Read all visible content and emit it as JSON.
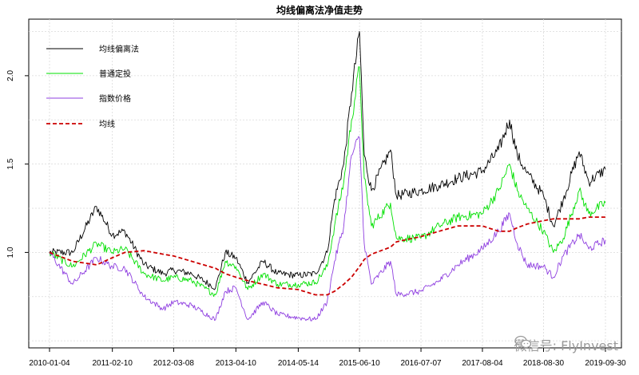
{
  "chart_data": {
    "type": "line",
    "title": "均线偏离法净值走势",
    "xlabel": "",
    "ylabel": "",
    "ylim": [
      0.46,
      2.32
    ],
    "yticks": [
      1.0,
      1.5,
      2.0
    ],
    "ytick_labels": [
      "1.0",
      "1.5",
      "2.0"
    ],
    "x_tick_labels": [
      "2010-01-04",
      "2011-02-10",
      "2012-03-08",
      "2013-04-10",
      "2014-05-14",
      "2015-06-10",
      "2016-07-07",
      "2017-08-04",
      "2018-08-30",
      "2019-09-30"
    ],
    "x": [
      "2010-01-04",
      "2010-06-01",
      "2010-11-01",
      "2011-02-10",
      "2011-05-01",
      "2011-09-01",
      "2012-01-01",
      "2012-03-08",
      "2012-07-01",
      "2012-12-01",
      "2013-02-01",
      "2013-04-10",
      "2013-06-25",
      "2013-10-01",
      "2014-01-01",
      "2014-05-14",
      "2014-09-01",
      "2014-11-15",
      "2015-01-01",
      "2015-03-01",
      "2015-04-20",
      "2015-06-10",
      "2015-07-10",
      "2015-08-25",
      "2015-12-25",
      "2016-02-01",
      "2016-07-07",
      "2016-11-01",
      "2017-03-01",
      "2017-08-04",
      "2017-11-15",
      "2018-01-25",
      "2018-03-15",
      "2018-05-15",
      "2018-08-30",
      "2018-11-01",
      "2019-01-03",
      "2019-04-15",
      "2019-06-15",
      "2019-09-30"
    ],
    "grid": true,
    "legend_position": "top-left",
    "series": [
      {
        "name": "均线偏离法",
        "color": "#000000",
        "style": "solid",
        "values": [
          1.0,
          1.0,
          1.26,
          1.1,
          1.12,
          0.93,
          0.88,
          0.9,
          0.88,
          0.8,
          1.0,
          0.97,
          0.83,
          0.95,
          0.88,
          0.87,
          0.88,
          1.0,
          1.3,
          1.5,
          1.9,
          2.25,
          1.55,
          1.35,
          1.58,
          1.32,
          1.35,
          1.38,
          1.42,
          1.46,
          1.58,
          1.75,
          1.55,
          1.45,
          1.32,
          1.15,
          1.3,
          1.57,
          1.4,
          1.47
        ]
      },
      {
        "name": "普通定投",
        "color": "#00e000",
        "style": "solid",
        "values": [
          1.0,
          0.92,
          1.05,
          1.0,
          1.02,
          0.88,
          0.84,
          0.86,
          0.84,
          0.76,
          0.95,
          0.92,
          0.79,
          0.88,
          0.82,
          0.82,
          0.83,
          0.92,
          1.15,
          1.4,
          1.75,
          2.05,
          1.42,
          1.15,
          1.28,
          1.08,
          1.08,
          1.15,
          1.2,
          1.22,
          1.35,
          1.5,
          1.35,
          1.25,
          1.12,
          1.0,
          1.08,
          1.35,
          1.22,
          1.28
        ]
      },
      {
        "name": "指数价格",
        "color": "#8f3fe0",
        "style": "solid",
        "values": [
          1.0,
          0.82,
          0.97,
          0.92,
          0.91,
          0.75,
          0.68,
          0.72,
          0.7,
          0.62,
          0.78,
          0.8,
          0.62,
          0.72,
          0.65,
          0.63,
          0.62,
          0.72,
          0.95,
          1.15,
          1.55,
          1.65,
          1.05,
          0.82,
          0.95,
          0.76,
          0.78,
          0.84,
          0.93,
          1.02,
          1.12,
          1.22,
          1.05,
          0.93,
          0.92,
          0.86,
          0.98,
          1.1,
          1.02,
          1.07
        ]
      },
      {
        "name": "均线",
        "color": "#cc0000",
        "style": "dashed",
        "values": [
          1.0,
          0.95,
          0.93,
          0.97,
          1.0,
          1.01,
          0.99,
          0.98,
          0.95,
          0.91,
          0.88,
          0.86,
          0.84,
          0.82,
          0.8,
          0.79,
          0.76,
          0.76,
          0.78,
          0.82,
          0.86,
          0.92,
          0.96,
          0.99,
          1.03,
          1.06,
          1.09,
          1.12,
          1.15,
          1.15,
          1.12,
          1.12,
          1.14,
          1.16,
          1.18,
          1.19,
          1.19,
          1.19,
          1.2,
          1.2
        ]
      }
    ]
  },
  "watermark": {
    "icon": "wechat-icon",
    "text": "微信号: FlyInvest"
  }
}
